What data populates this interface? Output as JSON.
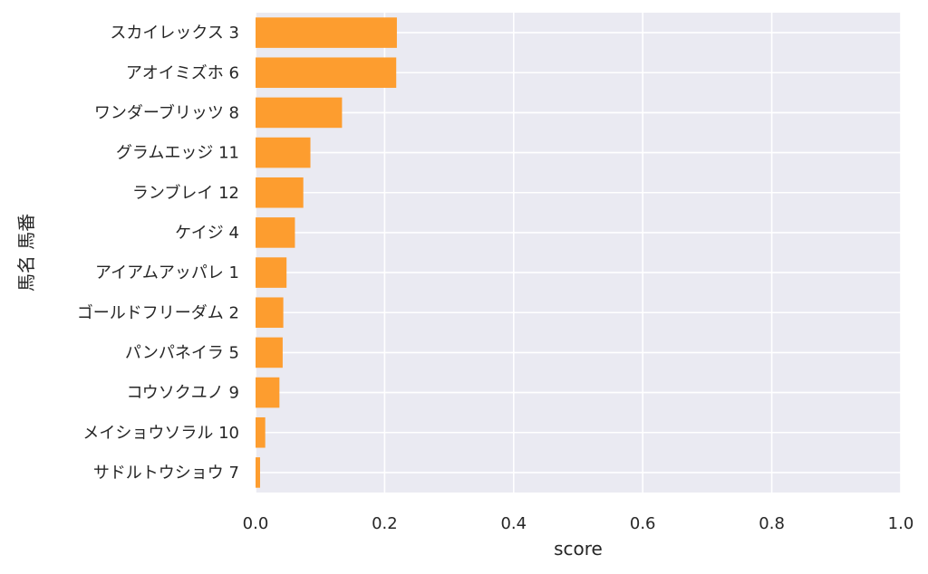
{
  "chart_data": {
    "type": "bar",
    "orientation": "horizontal",
    "categories": [
      "スカイレックス 3",
      "アオイミズホ 6",
      "ワンダーブリッツ 8",
      "グラムエッジ 11",
      "ランブレイ 12",
      "ケイジ 4",
      "アイアムアッパレ 1",
      "ゴールドフリーダム 2",
      "パンパネイラ 5",
      "コウソクユノ 9",
      "メイショウソラル 10",
      "サドルトウショウ 7"
    ],
    "values": [
      0.219,
      0.218,
      0.134,
      0.085,
      0.074,
      0.061,
      0.048,
      0.043,
      0.042,
      0.037,
      0.015,
      0.007
    ],
    "xlabel": "score",
    "ylabel": "馬名 馬番",
    "xlim": [
      0.0,
      1.0
    ],
    "xticks": [
      "0.0",
      "0.2",
      "0.4",
      "0.6",
      "0.8",
      "1.0"
    ],
    "grid": true,
    "colors": {
      "bar": "#fd9d2f",
      "plot_background": "#eaeaf2",
      "grid": "#ffffff",
      "text": "#262626"
    }
  }
}
